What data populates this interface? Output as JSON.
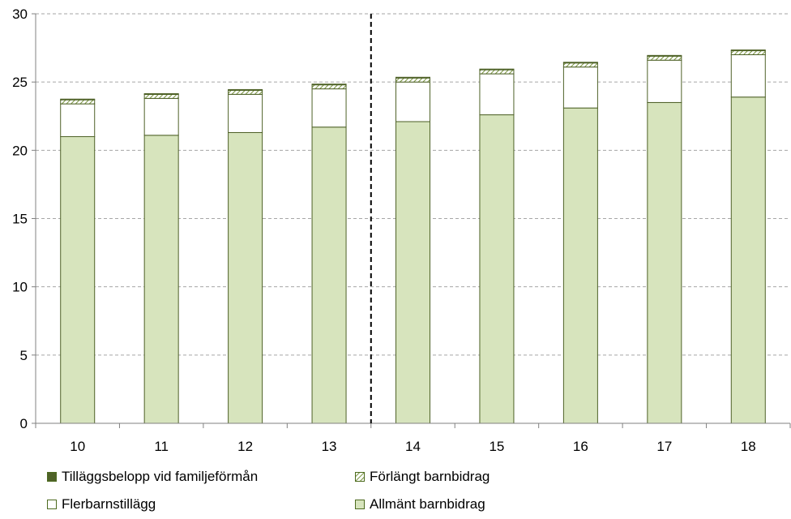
{
  "chart_data": {
    "type": "bar",
    "stacked": true,
    "categories": [
      "10",
      "11",
      "12",
      "13",
      "14",
      "15",
      "16",
      "17",
      "18"
    ],
    "series": [
      {
        "name": "Allmänt barnbidrag",
        "values": [
          21.0,
          21.1,
          21.3,
          21.7,
          22.1,
          22.6,
          23.1,
          23.5,
          23.9
        ],
        "color": "#d7e4bd",
        "pattern": "solid"
      },
      {
        "name": "Flerbarnstillägg",
        "values": [
          2.4,
          2.7,
          2.8,
          2.8,
          2.9,
          3.0,
          3.0,
          3.1,
          3.1
        ],
        "color": "#ffffff",
        "pattern": "solid"
      },
      {
        "name": "Förlängt barnbidrag",
        "values": [
          0.3,
          0.3,
          0.3,
          0.3,
          0.3,
          0.3,
          0.3,
          0.3,
          0.3
        ],
        "color": "#76923c",
        "pattern": "hatch"
      },
      {
        "name": "Tilläggsbelopp vid familjeförmån",
        "values": [
          0.05,
          0.05,
          0.05,
          0.05,
          0.05,
          0.05,
          0.05,
          0.05,
          0.05
        ],
        "color": "#4f6228",
        "pattern": "solid"
      }
    ],
    "ylim": [
      0,
      30
    ],
    "yticks": [
      "0",
      "5",
      "10",
      "15",
      "20",
      "25",
      "30"
    ],
    "grid": "horizontal dashed",
    "divider_after_category": "13",
    "legend_position": "bottom",
    "title": "",
    "xlabel": "",
    "ylabel": ""
  },
  "legend": [
    {
      "label": "Tilläggsbelopp vid familjeförmån",
      "color": "#4f6228",
      "pattern": "solid"
    },
    {
      "label": "Förlängt barnbidrag",
      "color": "#76923c",
      "pattern": "hatch"
    },
    {
      "label": "Flerbarnstillägg",
      "color": "#ffffff",
      "pattern": "solid"
    },
    {
      "label": "Allmänt barnbidrag",
      "color": "#d7e4bd",
      "pattern": "solid"
    }
  ]
}
